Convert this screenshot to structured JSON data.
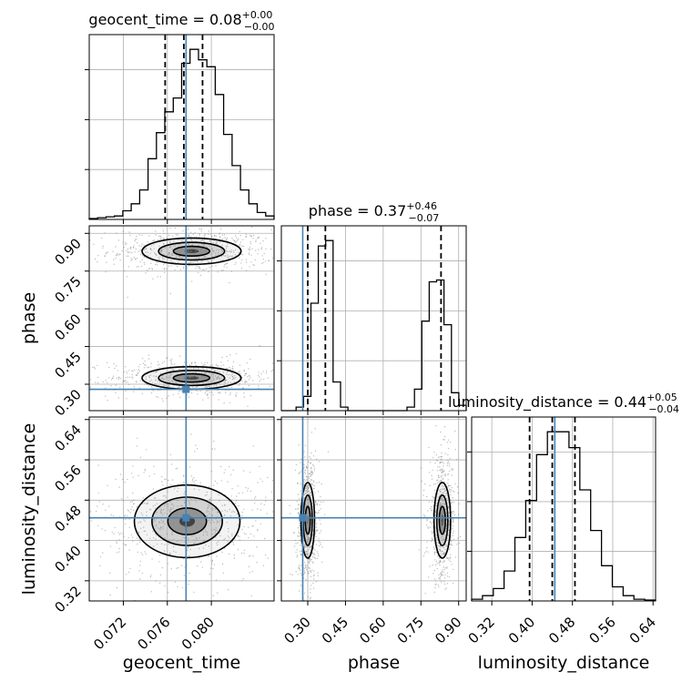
{
  "chart_data": {
    "type": "corner",
    "grid": true,
    "truth_color": "#4682b4",
    "parameters": [
      {
        "name": "geocent_time",
        "title": "geocent_time = 0.08",
        "title_main": "geocent_time = 0.08",
        "title_sup": "+0.00",
        "title_sub": "−0.00",
        "xlabel": "geocent_time",
        "range": [
          0.0689,
          0.0857
        ],
        "ticks": [
          0.072,
          0.076,
          0.08
        ],
        "tick_labels": [
          "0.072",
          "0.076",
          "0.080"
        ],
        "quantiles": [
          0.0758,
          0.0775,
          0.0792
        ],
        "truth": 0.0777,
        "hist": [
          0.005,
          0.01,
          0.015,
          0.02,
          0.05,
          0.09,
          0.17,
          0.35,
          0.5,
          0.62,
          0.7,
          0.9,
          0.98,
          0.92,
          0.88,
          0.72,
          0.49,
          0.31,
          0.17,
          0.09,
          0.04,
          0.02
        ]
      },
      {
        "name": "phase",
        "title": "phase = 0.37",
        "title_main": "phase = 0.37",
        "title_sup": "+0.46",
        "title_sub": "−0.07",
        "ylabel": "phase",
        "xlabel": "phase",
        "range": [
          0.195,
          0.93
        ],
        "ticks": [
          0.3,
          0.45,
          0.6,
          0.75,
          0.9
        ],
        "tick_labels": [
          "0.30",
          "0.45",
          "0.60",
          "0.75",
          "0.90"
        ],
        "quantiles": [
          0.3,
          0.37,
          0.83
        ],
        "truth": 0.28,
        "hist": [
          0,
          0,
          0.02,
          0.08,
          0.6,
          0.92,
          0.95,
          0.16,
          0.02,
          0,
          0,
          0,
          0,
          0,
          0,
          0,
          0,
          0.02,
          0.12,
          0.5,
          0.72,
          0.73,
          0.48,
          0.1,
          0.03
        ]
      },
      {
        "name": "luminosity_distance",
        "title": "luminosity_distance = 0.44",
        "title_main": "luminosity_distance = 0.44",
        "title_sup": "+0.05",
        "title_sub": "−0.04",
        "ylabel": "luminosity_distance",
        "xlabel": "luminosity_distance",
        "range": [
          0.28,
          0.645
        ],
        "ticks": [
          0.32,
          0.4,
          0.48,
          0.56,
          0.64
        ],
        "tick_labels": [
          "0.32",
          "0.40",
          "0.48",
          "0.56",
          "0.64"
        ],
        "quantiles": [
          0.395,
          0.44,
          0.485
        ],
        "truth": 0.445,
        "hist": [
          0.01,
          0.03,
          0.07,
          0.17,
          0.36,
          0.57,
          0.83,
          0.96,
          0.96,
          0.87,
          0.63,
          0.4,
          0.2,
          0.08,
          0.03,
          0.01,
          0.005
        ]
      }
    ],
    "pairs": [
      {
        "x": "geocent_time",
        "y": "phase",
        "modes": [
          {
            "center": [
              0.0782,
              0.829
            ],
            "sigma": [
              0.003,
              0.035
            ],
            "levels": [
              1.5,
              1.0,
              0.55,
              0.22
            ]
          },
          {
            "center": [
              0.0782,
              0.325
            ],
            "sigma": [
              0.003,
              0.03
            ],
            "levels": [
              1.5,
              1.0,
              0.55,
              0.22
            ]
          }
        ]
      },
      {
        "x": "geocent_time",
        "y": "luminosity_distance",
        "modes": [
          {
            "center": [
              0.0778,
              0.438
            ],
            "sigma": [
              0.0032,
              0.048
            ],
            "levels": [
              1.5,
              1.0,
              0.55,
              0.22
            ]
          }
        ]
      },
      {
        "x": "phase",
        "y": "luminosity_distance",
        "modes": [
          {
            "center": [
              0.3,
              0.44
            ],
            "sigma": [
              0.018,
              0.05
            ],
            "levels": [
              1.5,
              1.0,
              0.55,
              0.22
            ]
          },
          {
            "center": [
              0.835,
              0.44
            ],
            "sigma": [
              0.022,
              0.05
            ],
            "levels": [
              1.5,
              1.0,
              0.55,
              0.22
            ]
          }
        ]
      }
    ]
  }
}
